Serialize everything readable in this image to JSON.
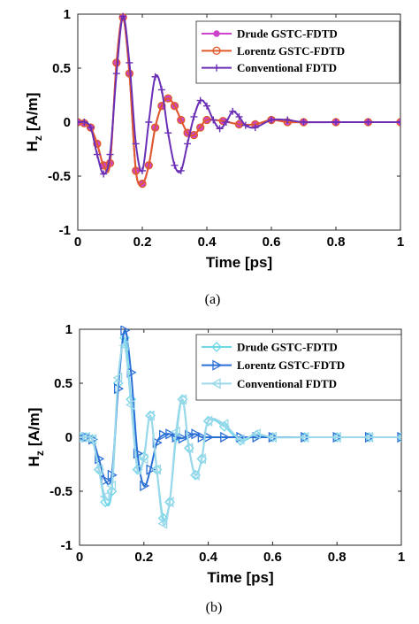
{
  "chart_data": [
    {
      "type": "line",
      "caption": "(a)",
      "xlabel": "Time [ps]",
      "ylabel_main": "H",
      "ylabel_sub": "z",
      "ylabel_unit": "[A/m]",
      "xlim": [
        0,
        1
      ],
      "ylim": [
        -1,
        1
      ],
      "xticks": [
        "0",
        "0.2",
        "0.4",
        "0.6",
        "0.8",
        "1"
      ],
      "yticks": [
        "-1",
        "-0.5",
        "0",
        "0.5",
        "1"
      ],
      "grid": false,
      "legend_position": "top-right",
      "series": [
        {
          "name": "Drude GSTC-FDTD",
          "color": "#cc44cc",
          "marker": "circle-filled",
          "x": [
            0,
            0.02,
            0.04,
            0.06,
            0.08,
            0.1,
            0.12,
            0.14,
            0.16,
            0.18,
            0.2,
            0.22,
            0.24,
            0.26,
            0.28,
            0.3,
            0.32,
            0.34,
            0.36,
            0.38,
            0.4,
            0.45,
            0.5,
            0.55,
            0.6,
            0.65,
            0.7,
            0.8,
            0.9,
            1.0
          ],
          "y": [
            0,
            -0.01,
            -0.05,
            -0.2,
            -0.4,
            -0.38,
            0.55,
            0.97,
            0.45,
            -0.45,
            -0.57,
            -0.4,
            -0.05,
            0.15,
            0.22,
            0.15,
            0.02,
            -0.1,
            -0.12,
            -0.05,
            0.02,
            0.01,
            -0.02,
            -0.02,
            0.02,
            0.0,
            0.0,
            0.0,
            0.0,
            0.0
          ]
        },
        {
          "name": "Lorentz GSTC-FDTD",
          "color": "#e05a2a",
          "marker": "circle-open",
          "x": [
            0,
            0.02,
            0.04,
            0.06,
            0.08,
            0.1,
            0.12,
            0.14,
            0.16,
            0.18,
            0.2,
            0.22,
            0.24,
            0.26,
            0.28,
            0.3,
            0.32,
            0.34,
            0.36,
            0.38,
            0.4,
            0.45,
            0.5,
            0.55,
            0.6,
            0.65,
            0.7,
            0.8,
            0.9,
            1.0
          ],
          "y": [
            0,
            -0.01,
            -0.05,
            -0.2,
            -0.4,
            -0.38,
            0.55,
            0.97,
            0.45,
            -0.45,
            -0.57,
            -0.4,
            -0.05,
            0.15,
            0.22,
            0.15,
            0.02,
            -0.1,
            -0.12,
            -0.05,
            0.02,
            0.01,
            -0.02,
            -0.02,
            0.02,
            0.0,
            0.0,
            0.0,
            0.0,
            0.0
          ]
        },
        {
          "name": "Conventional FDTD",
          "color": "#6a2fb5",
          "marker": "plus",
          "x": [
            0,
            0.02,
            0.04,
            0.06,
            0.08,
            0.1,
            0.12,
            0.14,
            0.16,
            0.18,
            0.2,
            0.22,
            0.24,
            0.26,
            0.28,
            0.3,
            0.32,
            0.34,
            0.36,
            0.38,
            0.4,
            0.42,
            0.44,
            0.46,
            0.48,
            0.5,
            0.52,
            0.55,
            0.6,
            0.65,
            0.7,
            0.8,
            0.9,
            1.0
          ],
          "y": [
            0,
            0.0,
            -0.05,
            -0.3,
            -0.48,
            -0.3,
            0.45,
            0.98,
            0.55,
            -0.2,
            -0.45,
            0.0,
            0.42,
            0.3,
            -0.1,
            -0.4,
            -0.45,
            -0.2,
            0.05,
            0.2,
            0.15,
            0.02,
            -0.06,
            0.0,
            0.1,
            0.05,
            -0.03,
            -0.05,
            0.02,
            0.02,
            0.0,
            0.0,
            0.0,
            0.0
          ]
        }
      ]
    },
    {
      "type": "line",
      "caption": "(b)",
      "xlabel": "Time [ps]",
      "ylabel_main": "H",
      "ylabel_sub": "z",
      "ylabel_unit": "[A/m]",
      "xlim": [
        0,
        1
      ],
      "ylim": [
        -1,
        1
      ],
      "xticks": [
        "0",
        "0.2",
        "0.4",
        "0.6",
        "0.8",
        "1"
      ],
      "yticks": [
        "-1",
        "-0.5",
        "0",
        "0.5",
        "1"
      ],
      "grid": false,
      "legend_position": "top-right",
      "series": [
        {
          "name": "Drude GSTC-FDTD",
          "color": "#6fd6ea",
          "marker": "diamond-open",
          "x": [
            0,
            0.02,
            0.04,
            0.06,
            0.08,
            0.1,
            0.12,
            0.14,
            0.16,
            0.18,
            0.2,
            0.22,
            0.24,
            0.26,
            0.28,
            0.3,
            0.32,
            0.34,
            0.36,
            0.38,
            0.4,
            0.45,
            0.5,
            0.55,
            0.6,
            0.7,
            0.8,
            0.9,
            1.0
          ],
          "y": [
            0,
            0.0,
            -0.02,
            -0.3,
            -0.6,
            -0.5,
            0.5,
            0.92,
            0.35,
            -0.3,
            -0.18,
            0.2,
            -0.3,
            -0.75,
            -0.6,
            0.0,
            0.35,
            -0.1,
            -0.35,
            -0.2,
            0.15,
            0.1,
            -0.03,
            0.02,
            0.0,
            0.0,
            0.0,
            0.0,
            0.0
          ]
        },
        {
          "name": "Lorentz GSTC-FDTD",
          "color": "#2a6fd6",
          "marker": "triangle-right-open",
          "x": [
            0,
            0.02,
            0.04,
            0.06,
            0.08,
            0.1,
            0.12,
            0.14,
            0.16,
            0.18,
            0.2,
            0.22,
            0.24,
            0.26,
            0.28,
            0.3,
            0.32,
            0.34,
            0.36,
            0.38,
            0.4,
            0.45,
            0.5,
            0.55,
            0.6,
            0.7,
            0.8,
            0.9,
            1.0
          ],
          "y": [
            0,
            0.0,
            -0.02,
            -0.2,
            -0.4,
            -0.35,
            0.45,
            0.99,
            0.6,
            -0.15,
            -0.45,
            -0.3,
            -0.05,
            0.02,
            0.03,
            0.0,
            -0.01,
            0.02,
            0.03,
            0.0,
            0.0,
            0.0,
            0.0,
            0.0,
            0.0,
            0.0,
            0.0,
            0.0,
            0.0
          ]
        },
        {
          "name": "Conventional FDTD",
          "color": "#9ad8ea",
          "marker": "triangle-left-open",
          "x": [
            0,
            0.02,
            0.04,
            0.06,
            0.08,
            0.1,
            0.12,
            0.14,
            0.16,
            0.18,
            0.2,
            0.22,
            0.24,
            0.26,
            0.28,
            0.3,
            0.32,
            0.34,
            0.36,
            0.38,
            0.4,
            0.45,
            0.5,
            0.55,
            0.6,
            0.7,
            0.8,
            0.9,
            1.0
          ],
          "y": [
            0,
            0.0,
            -0.02,
            -0.3,
            -0.55,
            -0.45,
            0.55,
            0.85,
            0.3,
            -0.3,
            -0.2,
            0.2,
            -0.3,
            -0.8,
            -0.6,
            0.05,
            0.35,
            -0.1,
            -0.35,
            -0.2,
            0.15,
            0.12,
            -0.02,
            0.03,
            0.0,
            0.0,
            0.0,
            0.0,
            0.0
          ]
        }
      ]
    }
  ]
}
